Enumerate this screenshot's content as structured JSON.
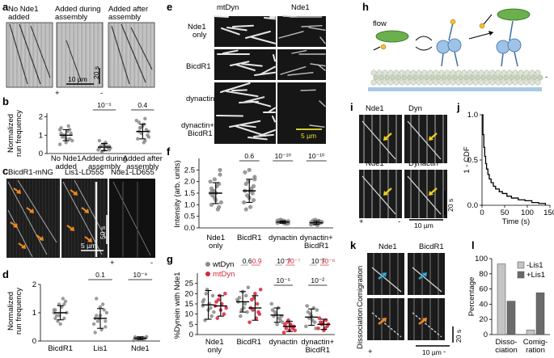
{
  "panels": {
    "a": {
      "label": "a",
      "conditions": [
        "No Nde1\nadded",
        "Added during\nassembly",
        "Added after\nassembly"
      ],
      "scale_time": "20 s",
      "scale_length": "10 µm",
      "plus": "+",
      "minus": "-"
    },
    "b": {
      "label": "b",
      "ylabel": "Normalized\nrun frequency",
      "categories": [
        "No Nde1\nadded",
        "Added during\nassembly",
        "Added after\nassembly"
      ],
      "pvalues": [
        "10⁻⁵",
        "0.4"
      ]
    },
    "c": {
      "label": "c",
      "titles": [
        "BicdR1-mNG",
        "Lis1-LD555",
        "Nde1-LD655"
      ],
      "scale_time": "50 s",
      "scale_length": "5 µm",
      "plus": "+",
      "minus": "-"
    },
    "d": {
      "label": "d",
      "ylabel": "Normalized\nrun frequency",
      "categories": [
        "BicdR1",
        "Lis1",
        "Nde1"
      ],
      "pvalues": [
        "0.1",
        "10⁻⁹"
      ]
    },
    "e": {
      "label": "e",
      "col_titles": [
        "mtDyn",
        "Nde1"
      ],
      "row_labels": [
        "Nde1\nonly",
        "BicdR1",
        "dynactin",
        "dynactin+\nBicdR1"
      ],
      "scale_length": "5 µm"
    },
    "f": {
      "label": "f",
      "ylabel": "Intensity (arb. units)",
      "categories": [
        "Nde1\nonly",
        "BicdR1",
        "dynactin",
        "dynactin+\nBicdR1"
      ],
      "pvalues": [
        "0.6",
        "10⁻¹⁰",
        "10⁻¹⁰"
      ]
    },
    "g": {
      "label": "g",
      "ylabel": "%Dynein with Nde1",
      "legend": [
        "wtDyn",
        "mtDyn"
      ],
      "categories": [
        "Nde1\nonly",
        "BicdR1",
        "dynactin",
        "dynactin+\nBicdR1"
      ],
      "pvalues_top_grey": [
        "0.6",
        "10⁻³",
        "10⁻²"
      ],
      "pvalues_top_red": [
        "0.9",
        "10⁻⁷",
        "10⁻⁶"
      ],
      "pvalues_mid": [
        "10⁻⁵",
        "10⁻²"
      ]
    },
    "h": {
      "label": "h",
      "flow": "flow",
      "minus": "-"
    },
    "i": {
      "label": "i",
      "titles": [
        "Nde1",
        "Dyn",
        "Nde1",
        "Dynactin"
      ],
      "scale_time": "20 s",
      "scale_length": "10 µm",
      "plus": "+",
      "minus": "-"
    },
    "j": {
      "label": "j",
      "ylabel": "1 - CDF",
      "xlabel": "Time (s)",
      "xticks": [
        "0",
        "50",
        "100",
        "150"
      ],
      "yticks": [
        "0.0",
        "0.5",
        "1.0"
      ]
    },
    "k": {
      "label": "k",
      "titles": [
        "Nde1",
        "BicdR1"
      ],
      "row_labels": [
        "Comigration",
        "Dissociation"
      ],
      "scale_time": "20 s",
      "scale_length": "10 µm",
      "plus": "+",
      "minus": "-"
    },
    "l": {
      "label": "l",
      "ylabel": "Percentage",
      "legend": [
        "-Lis1",
        "+Lis1"
      ],
      "categories": [
        "Disso-\nciation",
        "Comig-\nration"
      ],
      "yticks": [
        "0",
        "20",
        "40",
        "60",
        "80",
        "100"
      ]
    }
  },
  "chart_data": [
    {
      "panel": "b",
      "type": "scatter",
      "categories": [
        "No Nde1 added",
        "Added during assembly",
        "Added after assembly"
      ],
      "ylim": [
        0,
        2.2
      ],
      "yticks": [
        0,
        1,
        2
      ],
      "series": [
        {
          "values": [
            [
              1.3,
              1.0,
              0.8,
              1.4,
              0.6,
              1.1,
              0.9,
              1.2,
              0.7,
              1.0,
              1.5,
              0.5,
              0.9,
              1.3,
              1.1,
              0.8
            ],
            [
              0.3,
              0.5,
              0.2,
              0.4,
              0.6,
              0.3,
              0.1,
              0.4,
              0.2,
              0.5,
              0.3,
              0.7,
              0.2,
              0.4
            ],
            [
              1.2,
              1.6,
              0.9,
              1.4,
              0.7,
              1.8,
              1.1,
              1.3,
              0.8,
              1.5,
              1.0,
              1.7,
              0.6,
              1.2,
              1.4,
              1.9
            ]
          ],
          "mean": [
            1.0,
            0.35,
            1.2
          ],
          "sd": [
            0.3,
            0.2,
            0.4
          ]
        }
      ]
    },
    {
      "panel": "d",
      "type": "scatter",
      "categories": [
        "BicdR1",
        "Lis1",
        "Nde1"
      ],
      "ylim": [
        0,
        2
      ],
      "yticks": [
        0,
        1,
        2
      ],
      "series": [
        {
          "values": [
            [
              1.0,
              1.3,
              0.8,
              1.1,
              0.6,
              1.4,
              0.9,
              1.2,
              1.0,
              0.7,
              1.5,
              1.1,
              0.9,
              1.3,
              0.8
            ],
            [
              0.8,
              1.2,
              0.5,
              0.9,
              0.4,
              1.0,
              0.7,
              1.3,
              0.6,
              0.8,
              1.1,
              0.3,
              0.9,
              0.7,
              1.5
            ],
            [
              0.1,
              0.05,
              0.15,
              0.08,
              0.12,
              0.02,
              0.1,
              0.06,
              0.14,
              0.09,
              0.11,
              0.04
            ]
          ],
          "mean": [
            1.0,
            0.8,
            0.1
          ],
          "sd": [
            0.25,
            0.35,
            0.05
          ]
        }
      ]
    },
    {
      "panel": "f",
      "type": "scatter",
      "categories": [
        "Nde1 only",
        "BicdR1",
        "dynactin",
        "dynactin+BicdR1"
      ],
      "ylabel": "Intensity (arb. units)",
      "ylim": [
        0,
        3
      ],
      "yticks": [
        0.0,
        0.5,
        1.0,
        1.5,
        2.0,
        2.5
      ],
      "series": [
        {
          "values": [
            [
              1.5,
              2.1,
              0.9,
              1.7,
              1.2,
              2.5,
              1.4,
              1.8,
              1.1,
              1.6,
              0.8,
              2.0,
              1.3,
              1.9,
              1.0,
              1.5,
              2.3,
              1.6
            ],
            [
              1.6,
              2.5,
              1.2,
              1.9,
              0.9,
              2.2,
              1.4,
              1.7,
              1.1,
              2.0,
              1.5,
              2.4,
              1.3,
              1.8,
              0.8,
              1.6,
              2.1
            ],
            [
              0.25,
              0.3,
              0.2,
              0.35,
              0.28,
              0.22,
              0.32,
              0.18,
              0.27,
              0.3,
              0.24,
              0.33,
              0.21,
              0.29,
              0.26,
              0.23,
              0.31
            ],
            [
              0.2,
              0.3,
              0.15,
              0.35,
              0.25,
              0.18,
              0.28,
              0.22,
              0.32,
              0.12,
              0.26,
              0.2,
              0.3,
              0.24,
              0.17,
              0.27
            ]
          ],
          "mean": [
            1.5,
            1.6,
            0.25,
            0.22
          ],
          "sd": [
            0.45,
            0.5,
            0.05,
            0.07
          ]
        }
      ]
    },
    {
      "panel": "g",
      "type": "scatter",
      "categories": [
        "Nde1 only",
        "BicdR1",
        "dynactin",
        "dynactin+BicdR1"
      ],
      "ylabel": "%Dynein with Nde1",
      "ylim": [
        0,
        30
      ],
      "yticks": [
        0,
        5,
        10,
        15,
        20,
        25
      ],
      "series": [
        {
          "name": "wtDyn",
          "color": "#8a8a8a",
          "values": [
            [
              14,
              22,
              9,
              17,
              12,
              19,
              7,
              15,
              11,
              20,
              13,
              16
            ],
            [
              16,
              21,
              11,
              18,
              13,
              23,
              9,
              15,
              17,
              12,
              19
            ],
            [
              9,
              13,
              6,
              11,
              8,
              15,
              10,
              7,
              12,
              5,
              9
            ],
            [
              8,
              13,
              4,
              10,
              6,
              14,
              9,
              3,
              11,
              7,
              12
            ]
          ],
          "mean": [
            14.5,
            16,
            9.5,
            8.5
          ],
          "sd": [
            7,
            5,
            3.5,
            4
          ]
        },
        {
          "name": "mtDyn",
          "color": "#d8263a",
          "values": [
            [
              14,
              19,
              10,
              16,
              12,
              20,
              8,
              15,
              13,
              17
            ],
            [
              13,
              20,
              10,
              17,
              8,
              22,
              12,
              15,
              6,
              18,
              11
            ],
            [
              3,
              5,
              2,
              6,
              4,
              1,
              7,
              3,
              5,
              2,
              4
            ],
            [
              5,
              7,
              3,
              6,
              4,
              8,
              2,
              5,
              6,
              3
            ]
          ],
          "mean": [
            14,
            13,
            4,
            5
          ],
          "sd": [
            5,
            6,
            2.5,
            2.5
          ]
        }
      ]
    },
    {
      "panel": "j",
      "type": "line",
      "xlabel": "Time (s)",
      "ylabel": "1 - CDF",
      "xlim": [
        0,
        150
      ],
      "ylim": [
        0,
        1
      ],
      "x": [
        0,
        2,
        4,
        6,
        8,
        10,
        13,
        16,
        20,
        25,
        30,
        38,
        45,
        55,
        65,
        80,
        95,
        110,
        125,
        140
      ],
      "y": [
        1.0,
        0.78,
        0.64,
        0.54,
        0.46,
        0.4,
        0.34,
        0.29,
        0.25,
        0.21,
        0.18,
        0.15,
        0.13,
        0.1,
        0.08,
        0.06,
        0.05,
        0.03,
        0.02,
        0.0
      ]
    },
    {
      "panel": "l",
      "type": "bar",
      "categories": [
        "Dissociation",
        "Comigration"
      ],
      "ylabel": "Percentage",
      "ylim": [
        0,
        100
      ],
      "series": [
        {
          "name": "-Lis1",
          "color": "#c4c4c4",
          "values": [
            93,
            6
          ]
        },
        {
          "name": "+Lis1",
          "color": "#6b6b6b",
          "values": [
            44,
            55
          ]
        }
      ]
    }
  ]
}
